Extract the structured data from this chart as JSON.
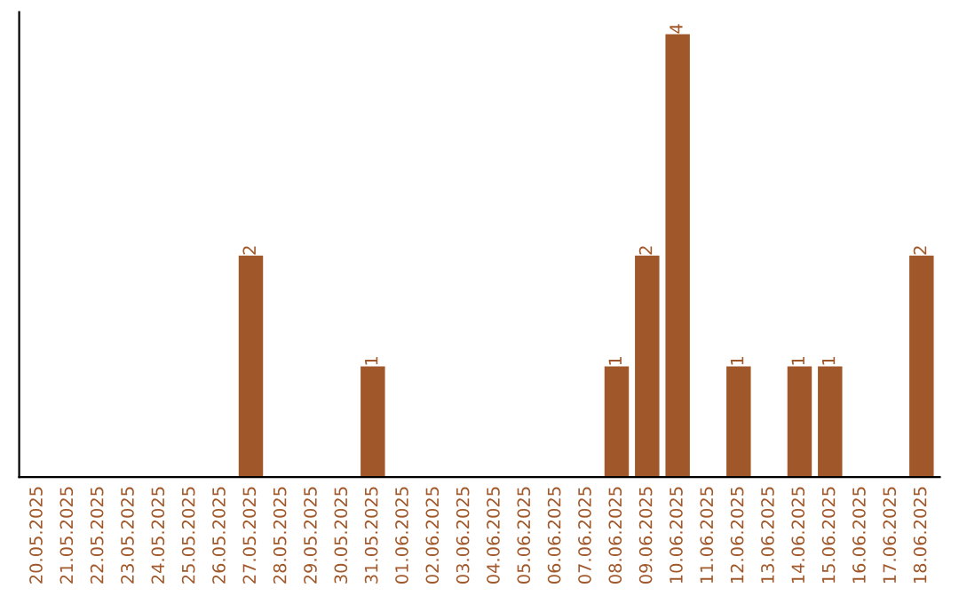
{
  "chart_data": {
    "type": "bar",
    "categories": [
      "20.05.2025",
      "21.05.2025",
      "22.05.2025",
      "23.05.2025",
      "24.05.2025",
      "25.05.2025",
      "26.05.2025",
      "27.05.2025",
      "28.05.2025",
      "29.05.2025",
      "30.05.2025",
      "31.05.2025",
      "01.06.2025",
      "02.06.2025",
      "03.06.2025",
      "04.06.2025",
      "05.06.2025",
      "06.06.2025",
      "07.06.2025",
      "08.06.2025",
      "09.06.2025",
      "10.06.2025",
      "11.06.2025",
      "12.06.2025",
      "13.06.2025",
      "14.06.2025",
      "15.06.2025",
      "16.06.2025",
      "17.06.2025",
      "18.06.2025"
    ],
    "values": [
      0,
      0,
      0,
      0,
      0,
      0,
      0,
      2,
      0,
      0,
      0,
      1,
      0,
      0,
      0,
      0,
      0,
      0,
      0,
      1,
      2,
      4,
      0,
      1,
      0,
      1,
      1,
      0,
      0,
      2
    ],
    "value_labels": [
      null,
      null,
      null,
      null,
      null,
      null,
      null,
      "2",
      null,
      null,
      null,
      "1",
      null,
      null,
      null,
      null,
      null,
      null,
      null,
      "1",
      "2",
      "4",
      null,
      "1",
      null,
      "1",
      "1",
      null,
      null,
      "2"
    ],
    "color": "#a0582a",
    "tick_labels": "x",
    "grid": false,
    "legend": false
  }
}
